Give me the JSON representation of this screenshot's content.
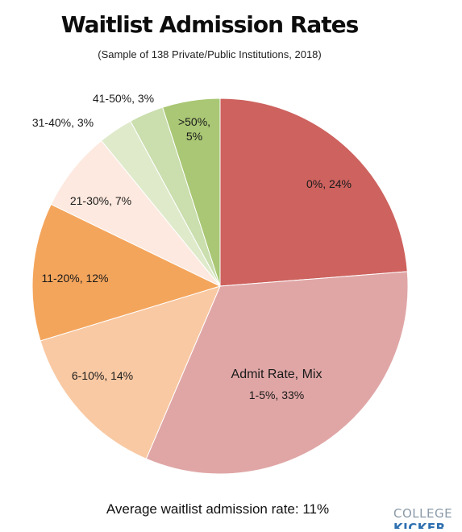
{
  "title": "Waitlist Admission Rates",
  "subtitle": "(Sample of 138 Private/Public Institutions, 2018)",
  "footer": "Average waitlist admission rate: 11%",
  "logo": {
    "line1": "COLLEGE",
    "line2": "KICKER"
  },
  "chart_data": {
    "type": "pie",
    "title": "Waitlist Admission Rates",
    "subtitle": "(Sample of 138 Private/Public Institutions, 2018)",
    "legend_title": "Admit Rate, Mix",
    "start_angle": "12 o'clock",
    "direction": "clockwise",
    "slices": [
      {
        "label": "0%",
        "value": 24,
        "color": "#cd625e",
        "text": "0%, 24%"
      },
      {
        "label": "1-5%",
        "value": 33,
        "color": "#e0a6a6",
        "text": "1-5%, 33%"
      },
      {
        "label": "6-10%",
        "value": 14,
        "color": "#f9c9a3",
        "text": "6-10%, 14%"
      },
      {
        "label": "11-20%",
        "value": 12,
        "color": "#f4a55c",
        "text": "11-20%, 12%"
      },
      {
        "label": "21-30%",
        "value": 7,
        "color": "#fde9df",
        "text": "21-30%, 7%"
      },
      {
        "label": "31-40%",
        "value": 3,
        "color": "#dfeacb",
        "text": "31-40%, 3%"
      },
      {
        "label": "41-50%",
        "value": 3,
        "color": "#cadeae",
        "text": "41-50%, 3%"
      },
      {
        "label": ">50%",
        "value": 5,
        "color": "#a9c774",
        "text_lines": [
          ">50%,",
          "5%"
        ]
      }
    ]
  }
}
